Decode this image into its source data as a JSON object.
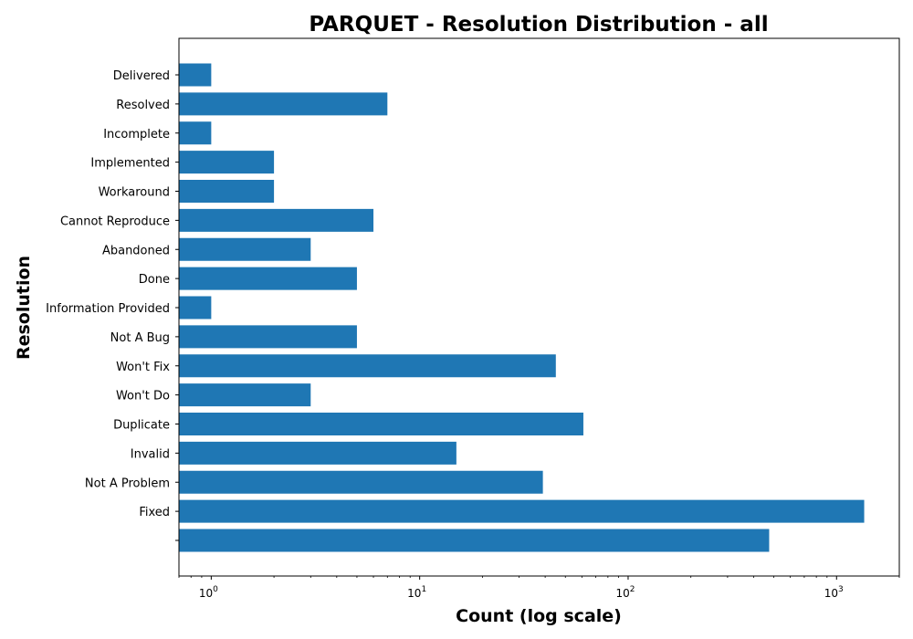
{
  "chart_data": {
    "type": "bar",
    "orientation": "horizontal",
    "title": "PARQUET - Resolution Distribution - all",
    "xlabel": "Count (log scale)",
    "ylabel": "Resolution",
    "x_scale": "log",
    "xlim": [
      0.7,
      2000
    ],
    "x_ticks": [
      {
        "value": 1,
        "base": "10",
        "exp": "0"
      },
      {
        "value": 10,
        "base": "10",
        "exp": "1"
      },
      {
        "value": 100,
        "base": "10",
        "exp": "2"
      },
      {
        "value": 1000,
        "base": "10",
        "exp": "3"
      }
    ],
    "grid": false,
    "bar_color": "#1f77b4",
    "categories": [
      "Delivered",
      "Resolved",
      "Incomplete",
      "Implemented",
      "Workaround",
      "Cannot Reproduce",
      "Abandoned",
      "Done",
      "Information Provided",
      "Not A Bug",
      "Won't Fix",
      "Won't Do",
      "Duplicate",
      "Invalid",
      "Not A Problem",
      "Fixed",
      ""
    ],
    "values": [
      1,
      7,
      1,
      2,
      2,
      6,
      3,
      5,
      1,
      5,
      45,
      3,
      61,
      15,
      39,
      1357,
      475
    ]
  }
}
